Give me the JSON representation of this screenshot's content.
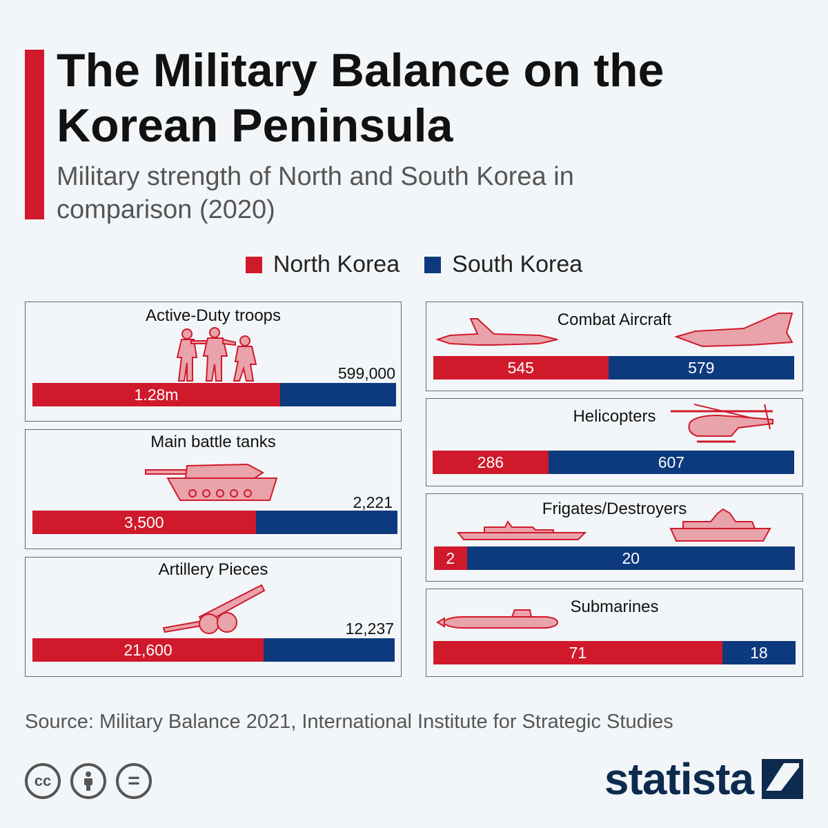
{
  "header": {
    "title": "The Military Balance on the Korean Peninsula",
    "subtitle": "Military strength of North and South Korea in comparison (2020)"
  },
  "legend": {
    "north": "North Korea",
    "south": "South Korea"
  },
  "colors": {
    "north": "#d0192b",
    "south": "#0d3a7e",
    "icon_fill": "#e9a3aa",
    "icon_stroke": "#d0192b"
  },
  "chart_data": {
    "type": "bar",
    "layout": "stacked-horizontal-panels",
    "series": [
      {
        "name": "North Korea"
      },
      {
        "name": "South Korea"
      }
    ],
    "panels": [
      {
        "category": "Active-Duty troops",
        "north": 1280000,
        "south": 599000,
        "north_label": "1.28m",
        "south_label": "599,000",
        "icon": "soldiers-icon"
      },
      {
        "category": "Main battle tanks",
        "north": 3500,
        "south": 2221,
        "north_label": "3,500",
        "south_label": "2,221",
        "icon": "tank-icon"
      },
      {
        "category": "Artillery Pieces",
        "north": 21600,
        "south": 12237,
        "north_label": "21,600",
        "south_label": "12,237",
        "icon": "artillery-icon"
      },
      {
        "category": "Combat Aircraft",
        "north": 545,
        "south": 579,
        "north_label": "545",
        "south_label": "579",
        "icon": "jet-icon"
      },
      {
        "category": "Helicopters",
        "north": 286,
        "south": 607,
        "north_label": "286",
        "south_label": "607",
        "icon": "helicopter-icon"
      },
      {
        "category": "Frigates/Destroyers",
        "north": 2,
        "south": 20,
        "north_label": "2",
        "south_label": "20",
        "icon": "warship-icon"
      },
      {
        "category": "Submarines",
        "north": 71,
        "south": 18,
        "north_label": "71",
        "south_label": "18",
        "icon": "submarine-icon"
      }
    ]
  },
  "footer": {
    "source": "Source: Military Balance 2021, International Institute for Strategic Studies",
    "cc_label": "cc",
    "eq_label": "=",
    "brand": "statista"
  }
}
